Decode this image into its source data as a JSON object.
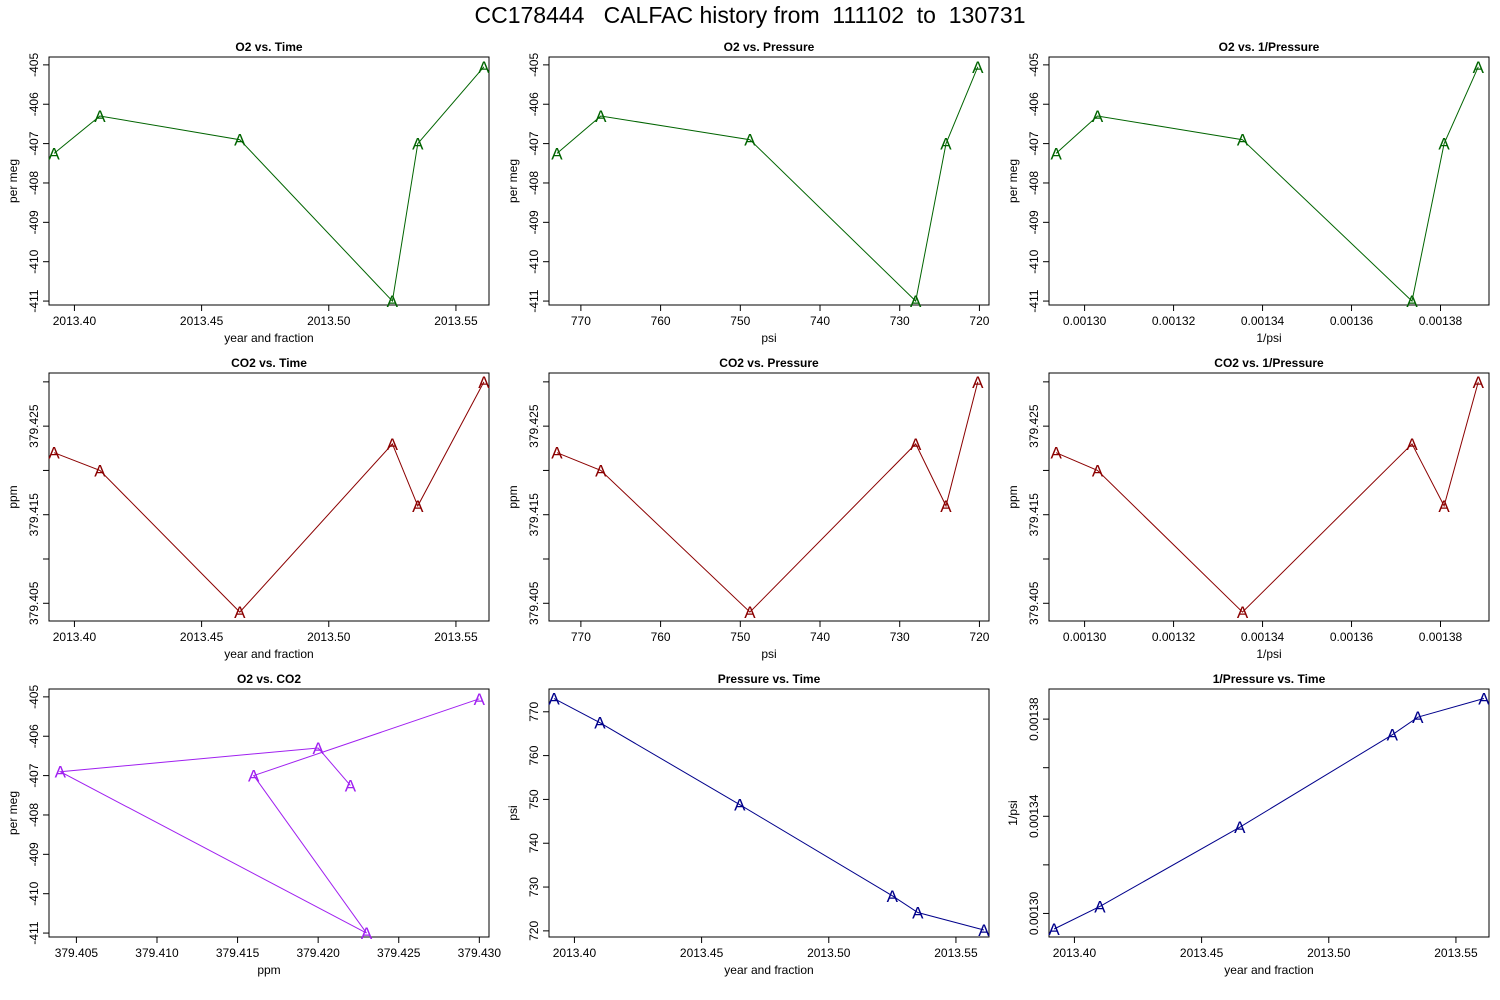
{
  "title": "CC178444   CALFAC history from  111102  to  130731",
  "colors": {
    "o2": "#006400",
    "co2": "#8B0000",
    "o2co2": "#A020F0",
    "pressure": "#00008B"
  },
  "chart_data": [
    {
      "type": "line",
      "title": "O2 vs. Time",
      "xlabel": "year and fraction",
      "ylabel": "per meg",
      "color": "o2",
      "marker": "A",
      "x": [
        2013.392,
        2013.41,
        2013.465,
        2013.525,
        2013.535,
        2013.561
      ],
      "y": [
        -407.25,
        -406.3,
        -406.9,
        -411.0,
        -407.0,
        -405.05
      ],
      "xlim": [
        2013.39,
        2013.563
      ],
      "ylim": [
        -411.1,
        -404.8
      ],
      "x_reversed": false,
      "xticks": [
        2013.4,
        2013.45,
        2013.5,
        2013.55
      ],
      "xtick_labels": [
        "2013.40",
        "2013.45",
        "2013.50",
        "2013.55"
      ],
      "yticks": [
        -411,
        -410,
        -409,
        -408,
        -407,
        -406,
        -405
      ],
      "ytick_labels": [
        "-411",
        "-410",
        "-409",
        "-408",
        "-407",
        "-406",
        "-405"
      ]
    },
    {
      "type": "line",
      "title": "O2 vs. Pressure",
      "xlabel": "psi",
      "ylabel": "per meg",
      "color": "o2",
      "marker": "A",
      "x": [
        773.0,
        767.5,
        748.8,
        728.0,
        724.2,
        720.2
      ],
      "y": [
        -407.25,
        -406.3,
        -406.9,
        -411.0,
        -407.0,
        -405.05
      ],
      "xlim": [
        774.0,
        718.8
      ],
      "ylim": [
        -411.1,
        -404.8
      ],
      "x_reversed": true,
      "xticks": [
        770,
        760,
        750,
        740,
        730,
        720
      ],
      "xtick_labels": [
        "770",
        "760",
        "750",
        "740",
        "730",
        "720"
      ],
      "yticks": [
        -411,
        -410,
        -409,
        -408,
        -407,
        -406,
        -405
      ],
      "ytick_labels": [
        "-411",
        "-410",
        "-409",
        "-408",
        "-407",
        "-406",
        "-405"
      ]
    },
    {
      "type": "line",
      "title": "O2 vs. 1/Pressure",
      "xlabel": "1/psi",
      "ylabel": "per meg",
      "color": "o2",
      "marker": "A",
      "x": [
        0.0012936,
        0.0013029,
        0.0013355,
        0.0013736,
        0.0013808,
        0.0013885
      ],
      "y": [
        -407.25,
        -406.3,
        -406.9,
        -411.0,
        -407.0,
        -405.05
      ],
      "xlim": [
        0.001292,
        0.0013909
      ],
      "ylim": [
        -411.1,
        -404.8
      ],
      "x_reversed": false,
      "xticks": [
        0.0013,
        0.00132,
        0.00134,
        0.00136,
        0.00138
      ],
      "xtick_labels": [
        "0.00130",
        "0.00132",
        "0.00134",
        "0.00136",
        "0.00138"
      ],
      "yticks": [
        -411,
        -410,
        -409,
        -408,
        -407,
        -406,
        -405
      ],
      "ytick_labels": [
        "-411",
        "-410",
        "-409",
        "-408",
        "-407",
        "-406",
        "-405"
      ]
    },
    {
      "type": "line",
      "title": "CO2 vs. Time",
      "xlabel": "year and fraction",
      "ylabel": "ppm",
      "color": "co2",
      "marker": "A",
      "x": [
        2013.392,
        2013.41,
        2013.465,
        2013.525,
        2013.535,
        2013.561
      ],
      "y": [
        379.422,
        379.42,
        379.404,
        379.423,
        379.416,
        379.43
      ],
      "xlim": [
        2013.39,
        2013.563
      ],
      "ylim": [
        379.403,
        379.431
      ],
      "x_reversed": false,
      "xticks": [
        2013.4,
        2013.45,
        2013.5,
        2013.55
      ],
      "xtick_labels": [
        "2013.40",
        "2013.45",
        "2013.50",
        "2013.55"
      ],
      "yticks": [
        379.405,
        379.41,
        379.415,
        379.42,
        379.425,
        379.43
      ],
      "ytick_labels": [
        "379.405",
        "",
        "379.415",
        "",
        "379.425",
        ""
      ]
    },
    {
      "type": "line",
      "title": "CO2 vs. Pressure",
      "xlabel": "psi",
      "ylabel": "ppm",
      "color": "co2",
      "marker": "A",
      "x": [
        773.0,
        767.5,
        748.8,
        728.0,
        724.2,
        720.2
      ],
      "y": [
        379.422,
        379.42,
        379.404,
        379.423,
        379.416,
        379.43
      ],
      "xlim": [
        774.0,
        718.8
      ],
      "ylim": [
        379.403,
        379.431
      ],
      "x_reversed": true,
      "xticks": [
        770,
        760,
        750,
        740,
        730,
        720
      ],
      "xtick_labels": [
        "770",
        "760",
        "750",
        "740",
        "730",
        "720"
      ],
      "yticks": [
        379.405,
        379.41,
        379.415,
        379.42,
        379.425,
        379.43
      ],
      "ytick_labels": [
        "379.405",
        "",
        "379.415",
        "",
        "379.425",
        ""
      ]
    },
    {
      "type": "line",
      "title": "CO2 vs. 1/Pressure",
      "xlabel": "1/psi",
      "ylabel": "ppm",
      "color": "co2",
      "marker": "A",
      "x": [
        0.0012936,
        0.0013029,
        0.0013355,
        0.0013736,
        0.0013808,
        0.0013885
      ],
      "y": [
        379.422,
        379.42,
        379.404,
        379.423,
        379.416,
        379.43
      ],
      "xlim": [
        0.001292,
        0.0013909
      ],
      "ylim": [
        379.403,
        379.431
      ],
      "x_reversed": false,
      "xticks": [
        0.0013,
        0.00132,
        0.00134,
        0.00136,
        0.00138
      ],
      "xtick_labels": [
        "0.00130",
        "0.00132",
        "0.00134",
        "0.00136",
        "0.00138"
      ],
      "yticks": [
        379.405,
        379.41,
        379.415,
        379.42,
        379.425,
        379.43
      ],
      "ytick_labels": [
        "379.405",
        "",
        "379.415",
        "",
        "379.425",
        ""
      ]
    },
    {
      "type": "line",
      "title": "O2 vs. CO2",
      "xlabel": "ppm",
      "ylabel": "per meg",
      "color": "o2co2",
      "marker": "A",
      "x": [
        379.422,
        379.42,
        379.404,
        379.423,
        379.416,
        379.43
      ],
      "y": [
        -407.25,
        -406.3,
        -406.9,
        -411.0,
        -407.0,
        -405.05
      ],
      "xlim": [
        379.4033,
        379.4306
      ],
      "ylim": [
        -411.1,
        -404.8
      ],
      "x_reversed": false,
      "xticks": [
        379.405,
        379.41,
        379.415,
        379.42,
        379.425,
        379.43
      ],
      "xtick_labels": [
        "379.405",
        "379.410",
        "379.415",
        "379.420",
        "379.425",
        "379.430"
      ],
      "yticks": [
        -411,
        -410,
        -409,
        -408,
        -407,
        -406,
        -405
      ],
      "ytick_labels": [
        "-411",
        "-410",
        "-409",
        "-408",
        "-407",
        "-406",
        "-405"
      ]
    },
    {
      "type": "line",
      "title": "Pressure vs. Time",
      "xlabel": "year and fraction",
      "ylabel": "psi",
      "color": "pressure",
      "marker": "A",
      "x": [
        2013.392,
        2013.41,
        2013.465,
        2013.525,
        2013.535,
        2013.561
      ],
      "y": [
        773.0,
        767.5,
        748.8,
        728.0,
        724.2,
        720.2
      ],
      "xlim": [
        2013.39,
        2013.563
      ],
      "ylim": [
        718.6,
        775.2
      ],
      "x_reversed": false,
      "xticks": [
        2013.4,
        2013.45,
        2013.5,
        2013.55
      ],
      "xtick_labels": [
        "2013.40",
        "2013.45",
        "2013.50",
        "2013.55"
      ],
      "yticks": [
        720,
        730,
        740,
        750,
        760,
        770
      ],
      "ytick_labels": [
        "720",
        "730",
        "740",
        "750",
        "760",
        "770"
      ]
    },
    {
      "type": "line",
      "title": "1/Pressure vs. Time",
      "xlabel": "year and fraction",
      "ylabel": "1/psi",
      "color": "pressure",
      "marker": "A",
      "x": [
        2013.392,
        2013.41,
        2013.465,
        2013.525,
        2013.535,
        2013.561
      ],
      "y": [
        0.0012936,
        0.0013029,
        0.0013355,
        0.0013736,
        0.0013808,
        0.0013885
      ],
      "xlim": [
        2013.39,
        2013.563
      ],
      "ylim": [
        0.0012903,
        0.0013924
      ],
      "x_reversed": false,
      "xticks": [
        2013.4,
        2013.45,
        2013.5,
        2013.55
      ],
      "xtick_labels": [
        "2013.40",
        "2013.45",
        "2013.50",
        "2013.55"
      ],
      "yticks": [
        0.0013,
        0.00132,
        0.00134,
        0.00136,
        0.00138
      ],
      "ytick_labels": [
        "0.00130",
        "",
        "0.00134",
        "",
        "0.00138"
      ]
    }
  ]
}
